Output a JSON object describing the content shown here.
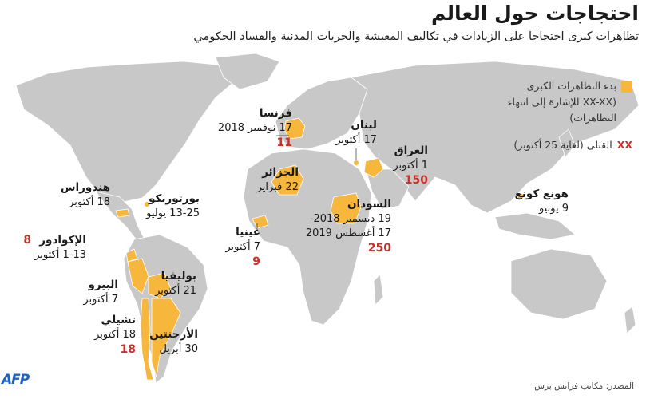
{
  "title": "احتجاجات حول العالم",
  "subtitle": "تظاهرات كبرى احتجاجا على الزيادات في تكاليف المعيشة والحريات المدنية والفساد الحكومي",
  "legend": {
    "start_label": "بدء التظاهرات الكبرى",
    "range_label": "(XX-XX للإشارة إلى انتهاء التظاهرات)",
    "dead_marker": "XX",
    "dead_label": "القتلى (لغاية 25 أكتوبر)"
  },
  "colors": {
    "protest": "#f6b73c",
    "land": "#c8c8c8",
    "deaths": "#c8312c",
    "afp": "#1e62c4"
  },
  "places": {
    "france": {
      "name": "فرنسا",
      "date": "17 نوفمبر 2018",
      "deaths": "11"
    },
    "lebanon": {
      "name": "لبنان",
      "date": "17 أكتوبر"
    },
    "iraq": {
      "name": "العراق",
      "date": "1 أكتوبر",
      "deaths": "150"
    },
    "algeria": {
      "name": "الجزائر",
      "date": "22 فبراير"
    },
    "sudan": {
      "name": "السودان",
      "date1": "19 ديسمبر 2018-",
      "date2": "17 أغسطس 2019",
      "deaths": "250"
    },
    "guinea": {
      "name": "غينيا",
      "date": "7 أكتوبر",
      "deaths": "9"
    },
    "honduras": {
      "name": "هندوراس",
      "date": "18 أكتوبر"
    },
    "puerto_rico": {
      "name": "بورتوريكو",
      "date": "13-25 يوليو"
    },
    "ecuador": {
      "name": "الإكوادور",
      "date": "1-13 أكتوبر",
      "deaths": "8"
    },
    "peru": {
      "name": "البيرو",
      "date": "7 أكتوبر"
    },
    "bolivia": {
      "name": "بوليفيا",
      "date": "21 أكتوبر"
    },
    "chile": {
      "name": "تشيلي",
      "date": "18 أكتوبر",
      "deaths": "18"
    },
    "argentina": {
      "name": "الأرجنتين",
      "date": "30 أبريل"
    },
    "hong_kong": {
      "name": "هونغ كونغ",
      "date": "9 يونيو"
    }
  },
  "source": "المصدر: مكاتب فرانس برس",
  "logo": "AFP"
}
